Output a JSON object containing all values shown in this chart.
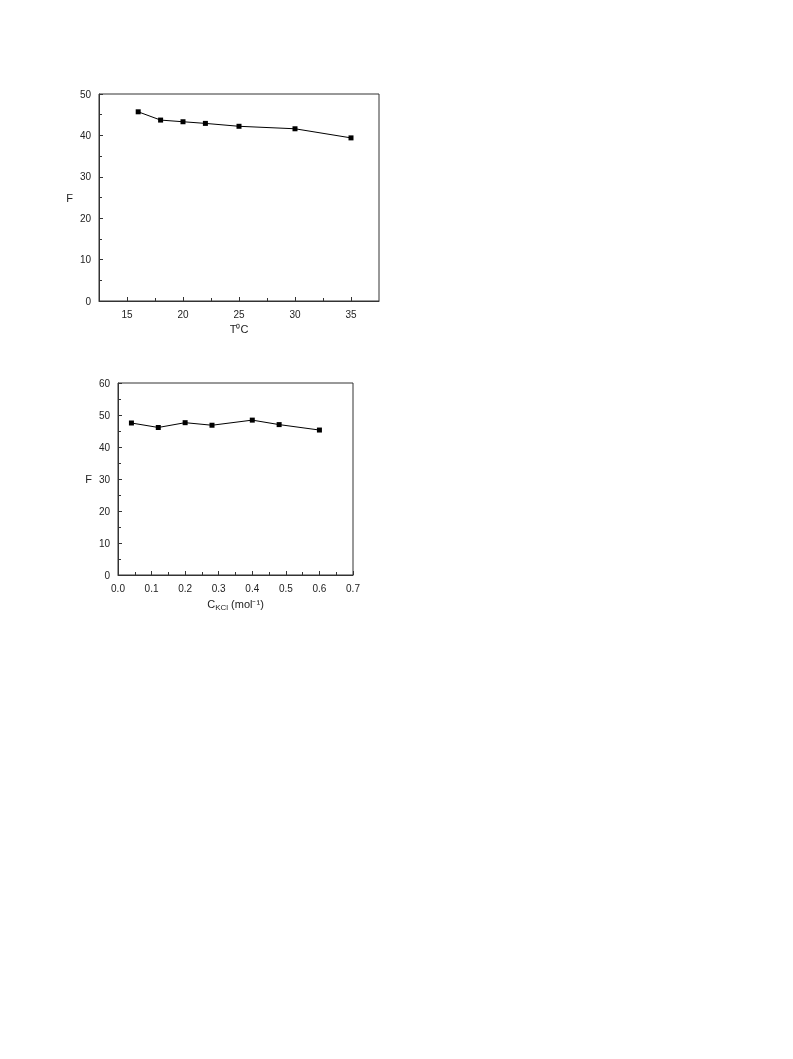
{
  "chart_data": [
    {
      "type": "line",
      "xlabel": "T⁰C",
      "ylabel": "F",
      "x": [
        16,
        18,
        20,
        22,
        25,
        30,
        35
      ],
      "series": [
        {
          "color": "#000000",
          "values": [
            45.7,
            43.7,
            43.3,
            42.9,
            42.2,
            41.6,
            39.4
          ]
        }
      ],
      "xlim": [
        12.5,
        37.5
      ],
      "xticks": [
        15,
        20,
        25,
        30,
        35
      ],
      "ylim": [
        0,
        50
      ],
      "yticks": [
        0,
        10,
        20,
        30,
        40,
        50
      ],
      "marker": "square",
      "line_style": "solid"
    },
    {
      "type": "line",
      "xlabel": "C$_{KCl}$ (mol⁻¹)",
      "ylabel": "F",
      "x": [
        0.04,
        0.12,
        0.2,
        0.28,
        0.4,
        0.48,
        0.6
      ],
      "series": [
        {
          "color": "#000000",
          "values": [
            47.5,
            46.1,
            47.6,
            46.8,
            48.4,
            47.0,
            45.3
          ]
        }
      ],
      "xlim": [
        0,
        0.7
      ],
      "xticks": [
        {
          "value": 0,
          "label": "0.0"
        },
        0.1,
        0.2,
        0.3,
        0.4,
        0.5,
        0.6,
        0.7
      ],
      "ylim": [
        0,
        60
      ],
      "yticks": [
        0,
        10,
        20,
        30,
        40,
        50,
        60
      ],
      "marker": "square",
      "line_style": "solid"
    }
  ]
}
